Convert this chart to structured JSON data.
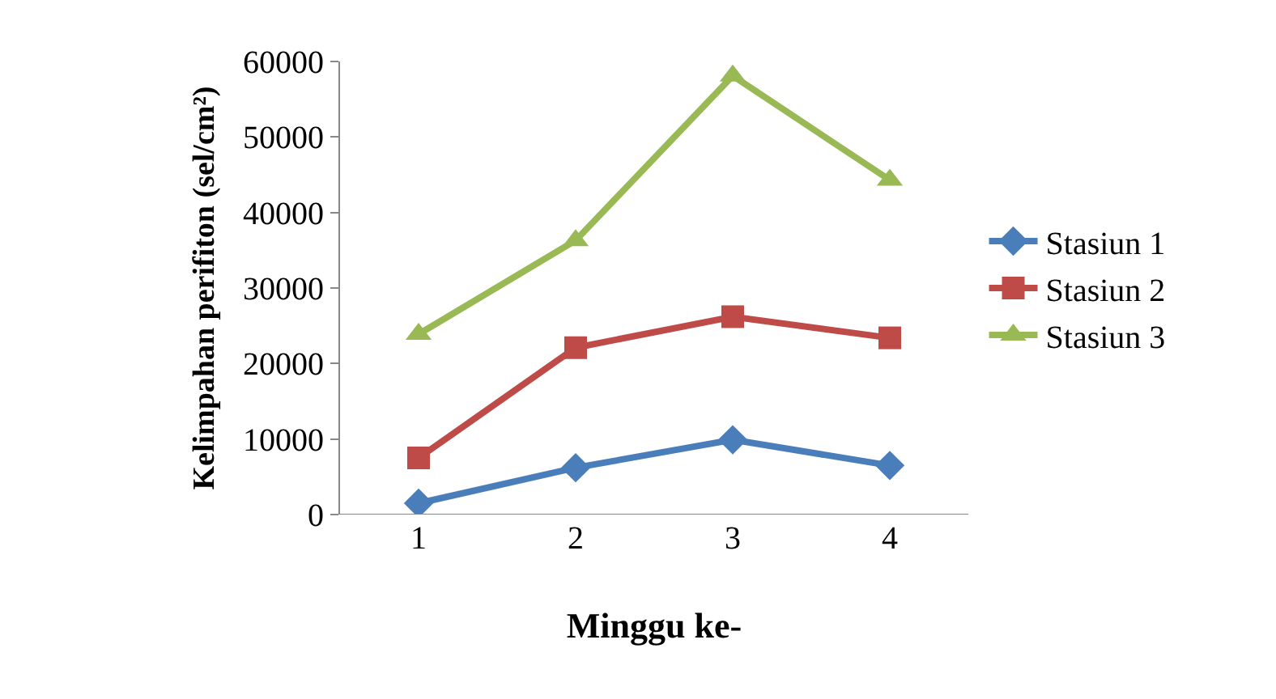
{
  "chart_data": {
    "type": "line",
    "xlabel": "Minggu ke-",
    "ylabel": "Kelimpahan perifiton (sel/cm²)",
    "categories": [
      "1",
      "2",
      "3",
      "4"
    ],
    "series": [
      {
        "name": "Stasiun 1",
        "color": "#4a7ebb",
        "marker": "diamond",
        "values": [
          1500,
          6200,
          9900,
          6500
        ]
      },
      {
        "name": "Stasiun 2",
        "color": "#be4b48",
        "marker": "square",
        "values": [
          7500,
          22100,
          26200,
          23400
        ]
      },
      {
        "name": "Stasiun 3",
        "color": "#98b954",
        "marker": "triangle",
        "values": [
          23900,
          36300,
          58100,
          44300
        ]
      }
    ],
    "ylim": [
      0,
      60000
    ],
    "yticks": [
      0,
      10000,
      20000,
      30000,
      40000,
      50000,
      60000
    ],
    "grid": false,
    "legend": "right",
    "line_style": "solid"
  }
}
